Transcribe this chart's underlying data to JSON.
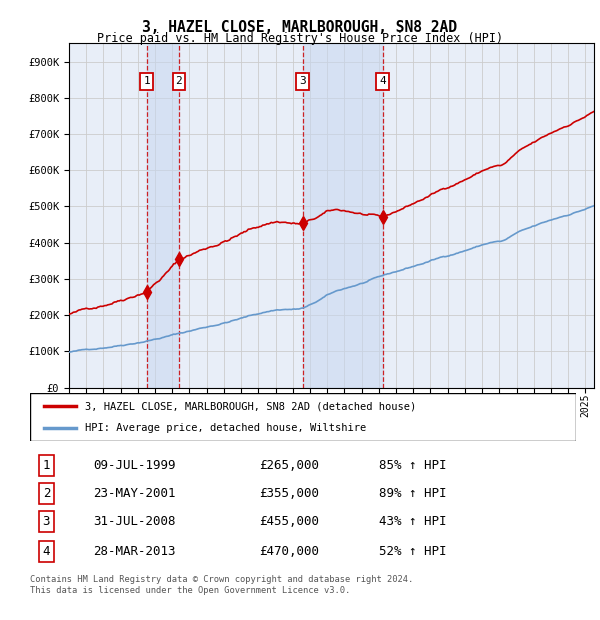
{
  "title": "3, HAZEL CLOSE, MARLBOROUGH, SN8 2AD",
  "subtitle": "Price paid vs. HM Land Registry's House Price Index (HPI)",
  "transactions": [
    {
      "label": "1",
      "date": "09-JUL-1999",
      "date_num": 1999.52,
      "price": 265000,
      "pct": "85% ↑ HPI"
    },
    {
      "label": "2",
      "date": "23-MAY-2001",
      "date_num": 2001.39,
      "price": 355000,
      "pct": "89% ↑ HPI"
    },
    {
      "label": "3",
      "date": "31-JUL-2008",
      "date_num": 2008.58,
      "price": 455000,
      "pct": "43% ↑ HPI"
    },
    {
      "label": "4",
      "date": "28-MAR-2013",
      "date_num": 2013.24,
      "price": 470000,
      "pct": "52% ↑ HPI"
    }
  ],
  "legend_line1": "3, HAZEL CLOSE, MARLBOROUGH, SN8 2AD (detached house)",
  "legend_line2": "HPI: Average price, detached house, Wiltshire",
  "footer": "Contains HM Land Registry data © Crown copyright and database right 2024.\nThis data is licensed under the Open Government Licence v3.0.",
  "ylim": [
    0,
    950000
  ],
  "xlim_start": 1995.0,
  "xlim_end": 2025.5,
  "hpi_color": "#6699cc",
  "price_color": "#cc0000",
  "bg_color": "#e8eef8",
  "grid_color": "#cccccc",
  "shade_color": "#c8d8f0",
  "dashed_color": "#cc0000",
  "box_color": "#cc0000",
  "yticks": [
    0,
    100000,
    200000,
    300000,
    400000,
    500000,
    600000,
    700000,
    800000,
    900000
  ],
  "ytick_labels": [
    "£0",
    "£100K",
    "£200K",
    "£300K",
    "£400K",
    "£500K",
    "£600K",
    "£700K",
    "£800K",
    "£900K"
  ],
  "xtick_years": [
    1995,
    1996,
    1997,
    1998,
    1999,
    2000,
    2001,
    2002,
    2003,
    2004,
    2005,
    2006,
    2007,
    2008,
    2009,
    2010,
    2011,
    2012,
    2013,
    2014,
    2015,
    2016,
    2017,
    2018,
    2019,
    2020,
    2021,
    2022,
    2023,
    2024,
    2025
  ]
}
